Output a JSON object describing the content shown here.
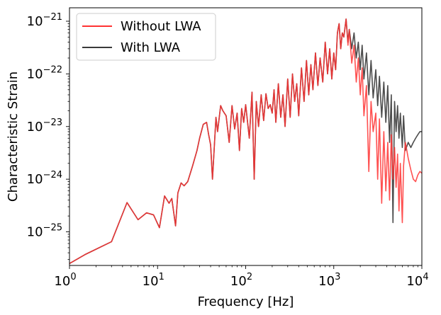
{
  "chart_data": {
    "type": "line",
    "title": "",
    "xlabel": "Frequency [Hz]",
    "ylabel": "Characteristic Strain",
    "xscale": "log",
    "yscale": "log",
    "xlim": [
      1,
      10000
    ],
    "ylim": [
      2.3e-26,
      1.8e-21
    ],
    "x_ticks": [
      {
        "value": 1,
        "base": "10",
        "exp": "0"
      },
      {
        "value": 10,
        "base": "10",
        "exp": "1"
      },
      {
        "value": 100,
        "base": "10",
        "exp": "2"
      },
      {
        "value": 1000,
        "base": "10",
        "exp": "3"
      },
      {
        "value": 10000,
        "base": "10",
        "exp": "4"
      }
    ],
    "y_ticks": [
      {
        "value": 1e-25,
        "base": "10",
        "exp": "−25"
      },
      {
        "value": 1e-24,
        "base": "10",
        "exp": "−24"
      },
      {
        "value": 1e-23,
        "base": "10",
        "exp": "−23"
      },
      {
        "value": 1e-22,
        "base": "10",
        "exp": "−22"
      },
      {
        "value": 1e-21,
        "base": "10",
        "exp": "−21"
      }
    ],
    "legend_position": "top-left",
    "series": [
      {
        "name": "Without LWA",
        "color": "#ff3333",
        "points": [
          [
            1,
            2.5e-26
          ],
          [
            1.5,
            3.7e-26
          ],
          [
            3,
            6.5e-26
          ],
          [
            4.5,
            3.6e-25
          ],
          [
            6,
            1.7e-25
          ],
          [
            7.5,
            2.3e-25
          ],
          [
            9,
            2.1e-25
          ],
          [
            10.5,
            1.2e-25
          ],
          [
            12,
            4.8e-25
          ],
          [
            13.5,
            3.5e-25
          ],
          [
            14.5,
            4.3e-25
          ],
          [
            16,
            1.3e-25
          ],
          [
            17,
            5.5e-25
          ],
          [
            18.5,
            8.5e-25
          ],
          [
            20,
            7.5e-25
          ],
          [
            22,
            9e-25
          ],
          [
            25,
            1.8e-24
          ],
          [
            28,
            3.5e-24
          ],
          [
            30,
            6e-24
          ],
          [
            33,
            1.1e-23
          ],
          [
            36,
            1.2e-23
          ],
          [
            38,
            7e-24
          ],
          [
            40,
            4.5e-24
          ],
          [
            42,
            1e-24
          ],
          [
            44,
            4e-24
          ],
          [
            46,
            1.5e-23
          ],
          [
            48,
            8e-24
          ],
          [
            52,
            2.5e-23
          ],
          [
            55,
            2e-23
          ],
          [
            60,
            1.6e-23
          ],
          [
            65,
            5e-24
          ],
          [
            70,
            2.5e-23
          ],
          [
            75,
            9e-24
          ],
          [
            80,
            1.8e-23
          ],
          [
            85,
            3.5e-24
          ],
          [
            90,
            2.2e-23
          ],
          [
            95,
            1.2e-23
          ],
          [
            100,
            2.6e-23
          ],
          [
            110,
            6e-24
          ],
          [
            118,
            4.5e-23
          ],
          [
            125,
            1e-24
          ],
          [
            132,
            3e-23
          ],
          [
            140,
            1e-23
          ],
          [
            150,
            4e-23
          ],
          [
            160,
            1.3e-23
          ],
          [
            170,
            4.2e-23
          ],
          [
            180,
            2.2e-23
          ],
          [
            190,
            2.6e-23
          ],
          [
            200,
            1.8e-23
          ],
          [
            210,
            5e-23
          ],
          [
            220,
            1.2e-23
          ],
          [
            235,
            6.5e-23
          ],
          [
            250,
            1.5e-23
          ],
          [
            265,
            4e-23
          ],
          [
            280,
            1e-23
          ],
          [
            300,
            8e-23
          ],
          [
            320,
            1.5e-23
          ],
          [
            340,
            1e-22
          ],
          [
            360,
            3e-23
          ],
          [
            380,
            6.5e-23
          ],
          [
            400,
            1.6e-23
          ],
          [
            430,
            1.3e-22
          ],
          [
            460,
            3e-23
          ],
          [
            490,
            1.8e-22
          ],
          [
            520,
            4e-23
          ],
          [
            550,
            1.5e-22
          ],
          [
            580,
            5e-23
          ],
          [
            620,
            2.5e-22
          ],
          [
            660,
            6e-23
          ],
          [
            700,
            2e-22
          ],
          [
            750,
            7e-23
          ],
          [
            800,
            4e-22
          ],
          [
            850,
            1e-22
          ],
          [
            900,
            3e-22
          ],
          [
            950,
            8e-23
          ],
          [
            1000,
            2.5e-22
          ],
          [
            1050,
            1.2e-22
          ],
          [
            1100,
            6e-22
          ],
          [
            1150,
            9e-22
          ],
          [
            1200,
            3e-22
          ],
          [
            1250,
            6e-22
          ],
          [
            1300,
            5e-22
          ],
          [
            1380,
            1.1e-21
          ],
          [
            1450,
            3.5e-22
          ],
          [
            1500,
            7e-22
          ],
          [
            1600,
            1.6e-22
          ],
          [
            1700,
            3.5e-22
          ],
          [
            1800,
            7e-23
          ],
          [
            1900,
            2e-22
          ],
          [
            2000,
            4e-23
          ],
          [
            2100,
            1.3e-22
          ],
          [
            2200,
            1.6e-23
          ],
          [
            2350,
            6e-23
          ],
          [
            2500,
            1.4e-24
          ],
          [
            2650,
            3e-23
          ],
          [
            2800,
            8e-24
          ],
          [
            3000,
            1.8e-23
          ],
          [
            3150,
            1e-24
          ],
          [
            3300,
            1.4e-23
          ],
          [
            3500,
            3.5e-25
          ],
          [
            3700,
            8e-24
          ],
          [
            3900,
            6e-25
          ],
          [
            4100,
            5e-24
          ],
          [
            4300,
            4e-25
          ],
          [
            4500,
            7e-24
          ],
          [
            4700,
            1e-24
          ],
          [
            4900,
            4e-24
          ],
          [
            5100,
            7e-25
          ],
          [
            5300,
            3e-24
          ],
          [
            5500,
            2.5e-25
          ],
          [
            5700,
            2e-24
          ],
          [
            6000,
            1.5e-25
          ],
          [
            6200,
            1.8e-24
          ],
          [
            6500,
            5e-24
          ],
          [
            7000,
            2.5e-24
          ],
          [
            7500,
            1.5e-24
          ],
          [
            8000,
            1e-24
          ],
          [
            8500,
            9e-25
          ],
          [
            9000,
            1.2e-24
          ],
          [
            9500,
            1.4e-24
          ],
          [
            10000,
            1.3e-24
          ]
        ]
      },
      {
        "name": "With LWA",
        "color": "#3a3a3a",
        "points": [
          [
            1,
            2.5e-26
          ],
          [
            1.5,
            3.7e-26
          ],
          [
            3,
            6.5e-26
          ],
          [
            4.5,
            3.6e-25
          ],
          [
            6,
            1.7e-25
          ],
          [
            7.5,
            2.3e-25
          ],
          [
            9,
            2.1e-25
          ],
          [
            10.5,
            1.2e-25
          ],
          [
            12,
            4.8e-25
          ],
          [
            13.5,
            3.5e-25
          ],
          [
            14.5,
            4.3e-25
          ],
          [
            16,
            1.3e-25
          ],
          [
            17,
            5.5e-25
          ],
          [
            18.5,
            8.5e-25
          ],
          [
            20,
            7.5e-25
          ],
          [
            22,
            9e-25
          ],
          [
            25,
            1.8e-24
          ],
          [
            28,
            3.5e-24
          ],
          [
            30,
            6e-24
          ],
          [
            33,
            1.1e-23
          ],
          [
            36,
            1.2e-23
          ],
          [
            38,
            7e-24
          ],
          [
            40,
            4.5e-24
          ],
          [
            42,
            1e-24
          ],
          [
            44,
            4e-24
          ],
          [
            46,
            1.5e-23
          ],
          [
            48,
            8e-24
          ],
          [
            52,
            2.5e-23
          ],
          [
            55,
            2e-23
          ],
          [
            60,
            1.6e-23
          ],
          [
            65,
            5e-24
          ],
          [
            70,
            2.5e-23
          ],
          [
            75,
            9e-24
          ],
          [
            80,
            1.8e-23
          ],
          [
            85,
            3.5e-24
          ],
          [
            90,
            2.2e-23
          ],
          [
            95,
            1.2e-23
          ],
          [
            100,
            2.6e-23
          ],
          [
            110,
            6e-24
          ],
          [
            118,
            4.5e-23
          ],
          [
            125,
            1e-24
          ],
          [
            132,
            3e-23
          ],
          [
            140,
            1e-23
          ],
          [
            150,
            4e-23
          ],
          [
            160,
            1.3e-23
          ],
          [
            170,
            4.2e-23
          ],
          [
            180,
            2.2e-23
          ],
          [
            190,
            2.6e-23
          ],
          [
            200,
            1.8e-23
          ],
          [
            210,
            5e-23
          ],
          [
            220,
            1.2e-23
          ],
          [
            235,
            6.5e-23
          ],
          [
            250,
            1.5e-23
          ],
          [
            265,
            4e-23
          ],
          [
            280,
            1e-23
          ],
          [
            300,
            8e-23
          ],
          [
            320,
            1.5e-23
          ],
          [
            340,
            1e-22
          ],
          [
            360,
            3e-23
          ],
          [
            380,
            6.5e-23
          ],
          [
            400,
            1.6e-23
          ],
          [
            430,
            1.3e-22
          ],
          [
            460,
            3e-23
          ],
          [
            490,
            1.8e-22
          ],
          [
            520,
            4e-23
          ],
          [
            550,
            1.5e-22
          ],
          [
            580,
            5e-23
          ],
          [
            620,
            2.5e-22
          ],
          [
            660,
            6e-23
          ],
          [
            700,
            2e-22
          ],
          [
            750,
            7e-23
          ],
          [
            800,
            4e-22
          ],
          [
            850,
            1e-22
          ],
          [
            900,
            3e-22
          ],
          [
            950,
            8e-23
          ],
          [
            1000,
            2.5e-22
          ],
          [
            1050,
            1.2e-22
          ],
          [
            1100,
            6e-22
          ],
          [
            1150,
            9e-22
          ],
          [
            1200,
            3e-22
          ],
          [
            1250,
            6e-22
          ],
          [
            1300,
            5e-22
          ],
          [
            1380,
            1.1e-21
          ],
          [
            1450,
            4e-22
          ],
          [
            1500,
            7e-22
          ],
          [
            1600,
            3e-22
          ],
          [
            1700,
            6e-22
          ],
          [
            1800,
            2e-22
          ],
          [
            1900,
            4e-22
          ],
          [
            2000,
            1.2e-22
          ],
          [
            2100,
            3.5e-22
          ],
          [
            2200,
            8e-23
          ],
          [
            2350,
            2.5e-22
          ],
          [
            2500,
            4e-23
          ],
          [
            2650,
            1.8e-22
          ],
          [
            2800,
            3.5e-23
          ],
          [
            3000,
            1.2e-22
          ],
          [
            3150,
            2.5e-23
          ],
          [
            3300,
            9e-23
          ],
          [
            3500,
            1.5e-23
          ],
          [
            3700,
            7e-23
          ],
          [
            3900,
            1.2e-23
          ],
          [
            4100,
            6e-23
          ],
          [
            4300,
            5e-24
          ],
          [
            4500,
            4e-23
          ],
          [
            4700,
            1.5e-25
          ],
          [
            4900,
            3e-23
          ],
          [
            5100,
            8e-24
          ],
          [
            5300,
            2.5e-23
          ],
          [
            5500,
            6e-24
          ],
          [
            5700,
            1.8e-23
          ],
          [
            6000,
            4e-24
          ],
          [
            6200,
            1.6e-23
          ],
          [
            6500,
            3.5e-24
          ],
          [
            7000,
            5e-24
          ],
          [
            7500,
            4e-24
          ],
          [
            8000,
            5e-24
          ],
          [
            8500,
            6e-24
          ],
          [
            9000,
            7e-24
          ],
          [
            9500,
            8e-24
          ],
          [
            10000,
            8e-24
          ]
        ]
      }
    ]
  }
}
